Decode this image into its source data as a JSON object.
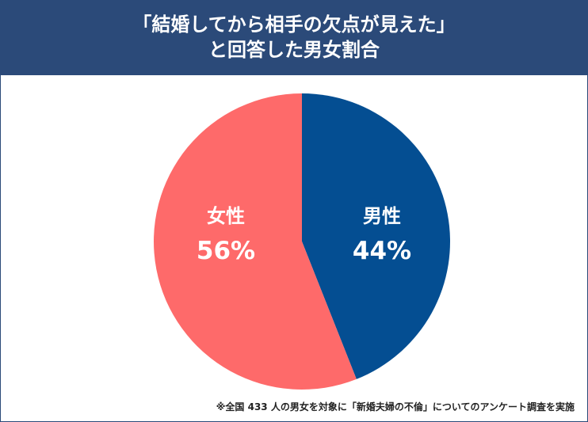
{
  "header": {
    "title_line1": "「結婚してから相手の欠点が見えた」",
    "title_line2": "と回答した男女割合"
  },
  "colors": {
    "header_bg": "#2b4a79",
    "male": "#044e92",
    "female": "#fe6a6a"
  },
  "chart_data": {
    "type": "pie",
    "title": "「結婚してから相手の欠点が見えた」と回答した男女割合",
    "slices": [
      {
        "label": "男性",
        "value": 44,
        "value_text": "44%",
        "color": "#044e92"
      },
      {
        "label": "女性",
        "value": 56,
        "value_text": "56%",
        "color": "#fe6a6a"
      }
    ],
    "start": "12 o'clock",
    "direction": "clockwise",
    "legend": "none"
  },
  "footnote": "※全国 433 人の男女を対象に「新婚夫婦の不倫」についてのアンケート調査を実施"
}
